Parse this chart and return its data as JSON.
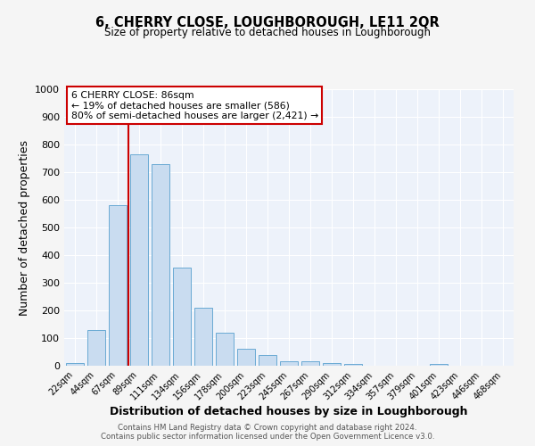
{
  "title": "6, CHERRY CLOSE, LOUGHBOROUGH, LE11 2QR",
  "subtitle": "Size of property relative to detached houses in Loughborough",
  "xlabel": "Distribution of detached houses by size in Loughborough",
  "ylabel": "Number of detached properties",
  "bar_color": "#c9dcf0",
  "bar_edge_color": "#6aaad4",
  "background_color": "#edf2fa",
  "grid_color": "#ffffff",
  "fig_background_color": "#f5f5f5",
  "categories": [
    "22sqm",
    "44sqm",
    "67sqm",
    "89sqm",
    "111sqm",
    "134sqm",
    "156sqm",
    "178sqm",
    "200sqm",
    "223sqm",
    "245sqm",
    "267sqm",
    "290sqm",
    "312sqm",
    "334sqm",
    "357sqm",
    "379sqm",
    "401sqm",
    "423sqm",
    "446sqm",
    "468sqm"
  ],
  "values": [
    10,
    128,
    580,
    765,
    730,
    355,
    210,
    120,
    62,
    40,
    15,
    15,
    10,
    8,
    0,
    0,
    0,
    8,
    0,
    0,
    0
  ],
  "ylim": [
    0,
    1000
  ],
  "yticks": [
    0,
    100,
    200,
    300,
    400,
    500,
    600,
    700,
    800,
    900,
    1000
  ],
  "property_line_color": "#cc0000",
  "property_line_index": 3,
  "annotation_line1": "6 CHERRY CLOSE: 86sqm",
  "annotation_line2": "← 19% of detached houses are smaller (586)",
  "annotation_line3": "80% of semi-detached houses are larger (2,421) →",
  "footer_line1": "Contains HM Land Registry data © Crown copyright and database right 2024.",
  "footer_line2": "Contains public sector information licensed under the Open Government Licence v3.0."
}
